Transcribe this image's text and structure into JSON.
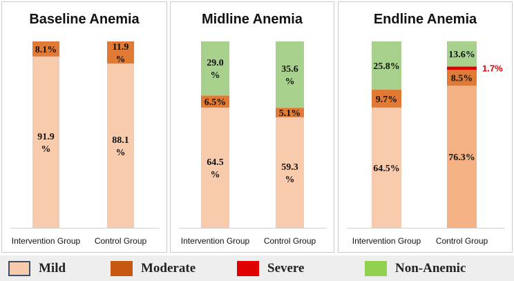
{
  "chart_data": [
    {
      "type": "bar",
      "stacked": true,
      "title": "Baseline Anemia",
      "categories": [
        "Intervention Group",
        "Control Group"
      ],
      "series": [
        {
          "name": "Mild",
          "values": [
            91.9,
            88.1
          ],
          "labels": [
            "91.9\n%",
            "88.1\n%"
          ]
        },
        {
          "name": "Moderate",
          "values": [
            8.1,
            11.9
          ],
          "labels": [
            "8.1%",
            "11.9\n%"
          ]
        },
        {
          "name": "Severe",
          "values": [
            0,
            0
          ],
          "labels": [
            "",
            ""
          ]
        },
        {
          "name": "Non-Anemic",
          "values": [
            0,
            0
          ],
          "labels": [
            "",
            ""
          ]
        }
      ],
      "ylim": [
        0,
        100
      ]
    },
    {
      "type": "bar",
      "stacked": true,
      "title": "Midline Anemia",
      "categories": [
        "Intervention Group",
        "Control Group"
      ],
      "series": [
        {
          "name": "Mild",
          "values": [
            64.5,
            59.3
          ],
          "labels": [
            "64.5\n%",
            "59.3\n%"
          ]
        },
        {
          "name": "Moderate",
          "values": [
            6.5,
            5.1
          ],
          "labels": [
            "6.5%",
            "5.1%"
          ]
        },
        {
          "name": "Severe",
          "values": [
            0,
            0
          ],
          "labels": [
            "",
            ""
          ]
        },
        {
          "name": "Non-Anemic",
          "values": [
            29.0,
            35.6
          ],
          "labels": [
            "29.0\n%",
            "35.6\n%"
          ]
        }
      ],
      "ylim": [
        0,
        100
      ]
    },
    {
      "type": "bar",
      "stacked": true,
      "title": "Endline Anemia",
      "categories": [
        "Intervention Group",
        "Control Group"
      ],
      "series": [
        {
          "name": "Mild",
          "values": [
            64.5,
            76.3
          ],
          "labels": [
            "64.5%",
            "76.3%"
          ]
        },
        {
          "name": "Moderate",
          "values": [
            9.7,
            8.5
          ],
          "labels": [
            "9.7%",
            "8.5%"
          ]
        },
        {
          "name": "Severe",
          "values": [
            0,
            1.7
          ],
          "labels": [
            "",
            "1.7%"
          ]
        },
        {
          "name": "Non-Anemic",
          "values": [
            25.8,
            13.6
          ],
          "labels": [
            "25.8%",
            "13.6%"
          ]
        }
      ],
      "ylim": [
        0,
        100
      ]
    }
  ],
  "legend": [
    {
      "name": "Mild",
      "color": "#f8cbad",
      "border": "#3b4f6b"
    },
    {
      "name": "Moderate",
      "color": "#c65911",
      "border": "#c65911"
    },
    {
      "name": "Severe",
      "color": "#e00000",
      "border": "#e00000"
    },
    {
      "name": "Non-Anemic",
      "color": "#92d050",
      "border": "#92d050"
    }
  ],
  "colors": {
    "Mild": "#f8cbad",
    "Mild_control_endline": "#f4b183",
    "Moderate": "#e07a35",
    "Severe": "#e00000",
    "Non-Anemic": "#a9d18e",
    "severe_label": "#e00000"
  }
}
